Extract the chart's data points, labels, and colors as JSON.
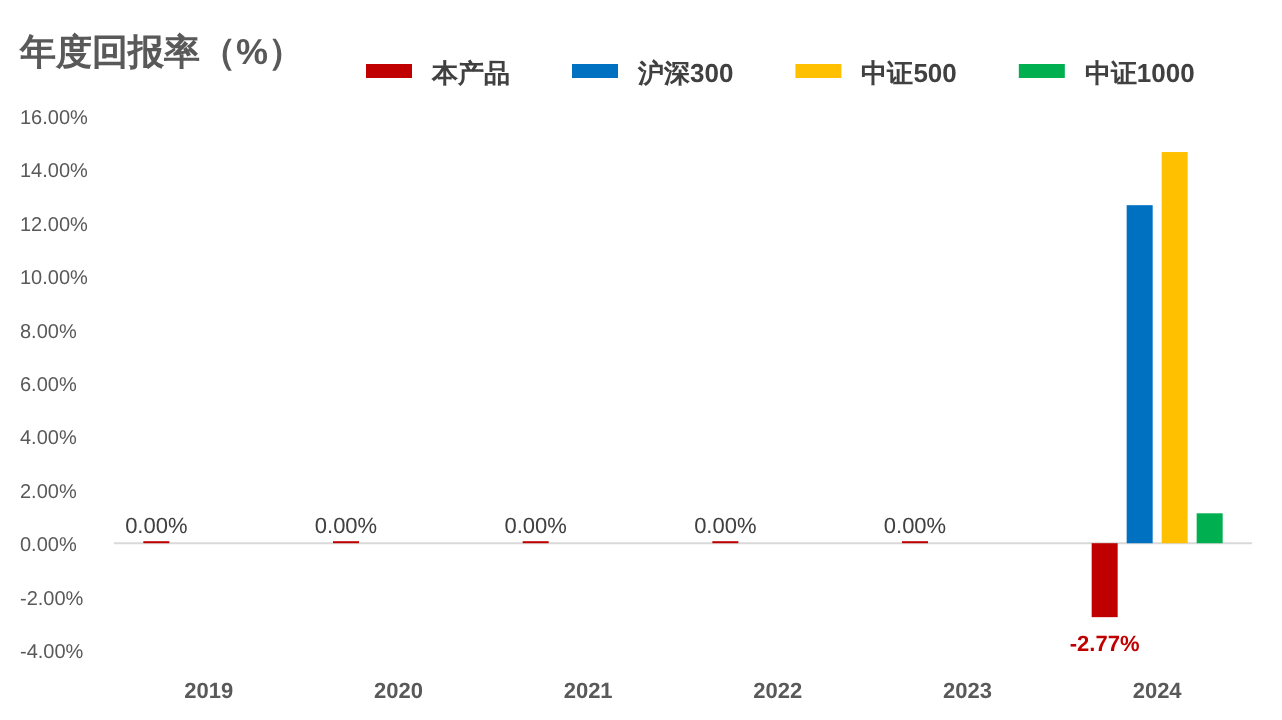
{
  "chart_data": {
    "type": "bar",
    "title": "年度回报率（%）",
    "categories": [
      "2019",
      "2020",
      "2021",
      "2022",
      "2023",
      "2024"
    ],
    "series": [
      {
        "name": "本产品",
        "color": "#c00000",
        "values": [
          0,
          0,
          0,
          0,
          0,
          -2.77
        ],
        "value_labels": [
          "0.00%",
          "0.00%",
          "0.00%",
          "0.00%",
          "0.00%",
          "-2.77%"
        ]
      },
      {
        "name": "沪深300",
        "color": "#0070c0",
        "values": [
          null,
          null,
          null,
          null,
          null,
          12.66
        ]
      },
      {
        "name": "中证500",
        "color": "#ffc000",
        "values": [
          null,
          null,
          null,
          null,
          null,
          14.65
        ]
      },
      {
        "name": "中证1000",
        "color": "#00b050",
        "values": [
          null,
          null,
          null,
          null,
          null,
          1.12
        ]
      }
    ],
    "ylim": [
      -4,
      16
    ],
    "yticks": [
      {
        "value": -4,
        "label": "-4.00%"
      },
      {
        "value": -2,
        "label": "-2.00%"
      },
      {
        "value": 0,
        "label": "0.00%"
      },
      {
        "value": 2,
        "label": "2.00%"
      },
      {
        "value": 4,
        "label": "4.00%"
      },
      {
        "value": 6,
        "label": "6.00%"
      },
      {
        "value": 8,
        "label": "8.00%"
      },
      {
        "value": 10,
        "label": "10.00%"
      },
      {
        "value": 12,
        "label": "12.00%"
      },
      {
        "value": 14,
        "label": "14.00%"
      },
      {
        "value": 16,
        "label": "16.00%"
      }
    ],
    "legend": "top"
  }
}
